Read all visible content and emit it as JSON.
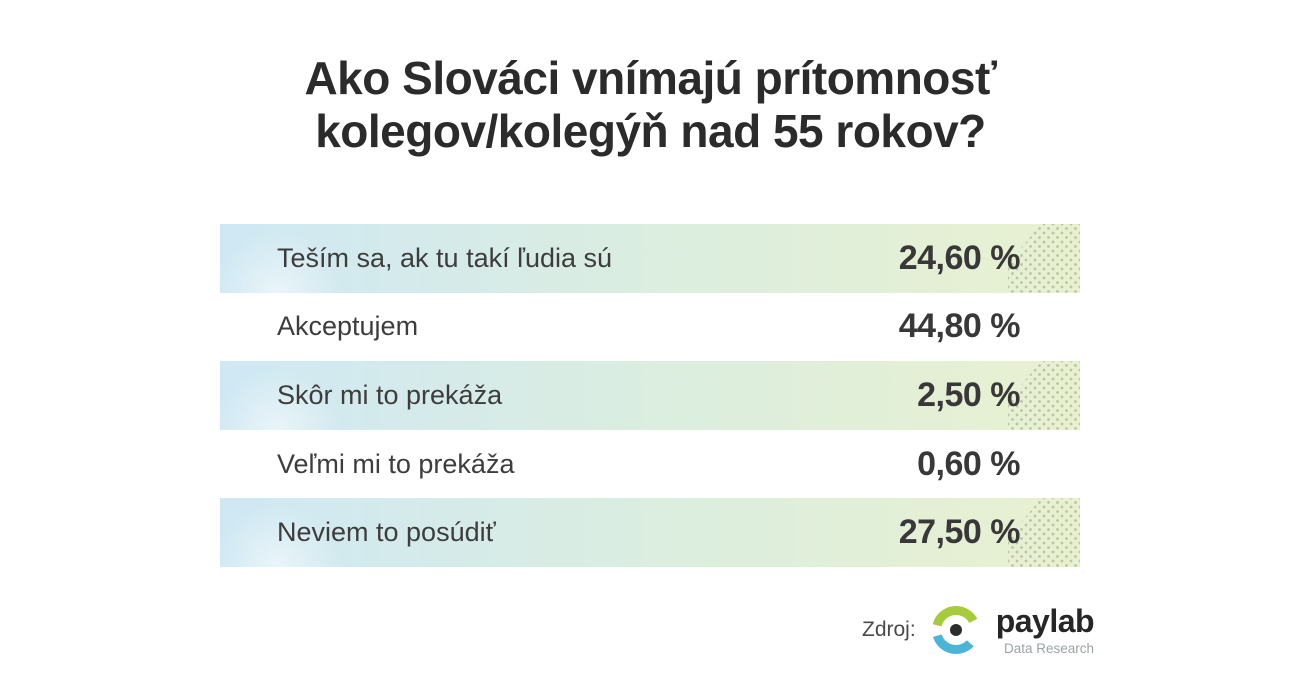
{
  "title": {
    "line1": "Ako Slováci vnímajú prítomnosť",
    "line2": "kolegov/kolegýň nad 55 rokov?"
  },
  "table": {
    "rows": [
      {
        "label": "Teším sa, ak tu takí ľudia sú",
        "value": "24,60 %",
        "highlighted": true
      },
      {
        "label": "Akceptujem",
        "value": "44,80 %",
        "highlighted": false
      },
      {
        "label": "Skôr mi to prekáža",
        "value": "2,50 %",
        "highlighted": true
      },
      {
        "label": "Veľmi mi to prekáža",
        "value": "0,60 %",
        "highlighted": false
      },
      {
        "label": "Neviem to posúdiť",
        "value": "27,50 %",
        "highlighted": true
      }
    ]
  },
  "source": {
    "label": "Zdroj:",
    "brand": "paylab",
    "brand_sub": "Data Research"
  },
  "colors": {
    "row_gradient_left": "#cfe8f4",
    "row_gradient_right": "#e9f0d0",
    "logo_green": "#a6cc3c",
    "logo_blue": "#4bb5d8",
    "title_text": "#2b2b2b",
    "label_text": "#3d3d3d",
    "value_text": "#383838",
    "brand_sub_text": "#9aa3a6"
  },
  "chart_data": {
    "type": "table",
    "title": "Ako Slováci vnímajú prítomnosť kolegov/kolegýň nad 55 rokov?",
    "categories": [
      "Teším sa, ak tu takí ľudia sú",
      "Akceptujem",
      "Skôr mi to prekáža",
      "Veľmi mi to prekáža",
      "Neviem to posúdiť"
    ],
    "values": [
      24.6,
      44.8,
      2.5,
      0.6,
      27.5
    ],
    "value_labels": [
      "24,60 %",
      "44,80 %",
      "2,50 %",
      "0,60 %",
      "27,50 %"
    ],
    "unit": "%",
    "highlighted_rows": [
      0,
      2,
      4
    ],
    "source": "Zdroj: paylab Data Research",
    "legend_position": "none",
    "grid": false
  }
}
